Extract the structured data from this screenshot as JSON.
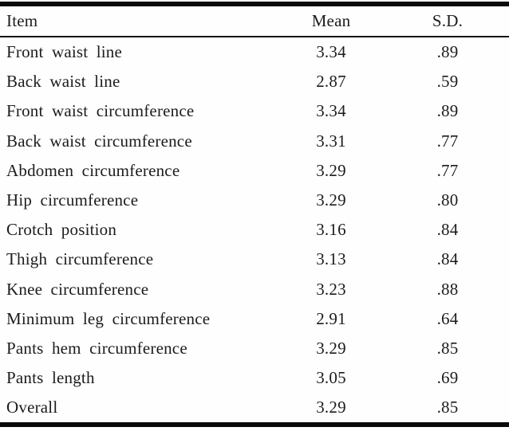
{
  "table": {
    "headers": {
      "item": "Item",
      "mean": "Mean",
      "sd": "S.D."
    },
    "rows": [
      {
        "item": "Front waist line",
        "mean": "3.34",
        "sd": ".89"
      },
      {
        "item": "Back waist line",
        "mean": "2.87",
        "sd": ".59"
      },
      {
        "item": "Front waist circumference",
        "mean": "3.34",
        "sd": ".89"
      },
      {
        "item": "Back waist circumference",
        "mean": "3.31",
        "sd": ".77"
      },
      {
        "item": "Abdomen circumference",
        "mean": "3.29",
        "sd": ".77"
      },
      {
        "item": "Hip circumference",
        "mean": "3.29",
        "sd": ".80"
      },
      {
        "item": "Crotch position",
        "mean": "3.16",
        "sd": ".84"
      },
      {
        "item": "Thigh circumference",
        "mean": "3.13",
        "sd": ".84"
      },
      {
        "item": "Knee circumference",
        "mean": "3.23",
        "sd": ".88"
      },
      {
        "item": "Minimum leg circumference",
        "mean": "2.91",
        "sd": ".64"
      },
      {
        "item": "Pants hem circumference",
        "mean": "3.29",
        "sd": ".85"
      },
      {
        "item": "Pants length",
        "mean": "3.05",
        "sd": ".69"
      },
      {
        "item": "Overall",
        "mean": "3.29",
        "sd": ".85"
      }
    ]
  },
  "colors": {
    "text": "#1c1c1c",
    "rule_heavy": "#0a0a0a",
    "rule_light": "#141414",
    "background": "#fefefe"
  },
  "chart_data": {
    "type": "table",
    "title": "",
    "columns": [
      "Item",
      "Mean",
      "S.D."
    ],
    "rows": [
      [
        "Front waist line",
        3.34,
        0.89
      ],
      [
        "Back waist line",
        2.87,
        0.59
      ],
      [
        "Front waist circumference",
        3.34,
        0.89
      ],
      [
        "Back waist circumference",
        3.31,
        0.77
      ],
      [
        "Abdomen circumference",
        3.29,
        0.77
      ],
      [
        "Hip circumference",
        3.29,
        0.8
      ],
      [
        "Crotch position",
        3.16,
        0.84
      ],
      [
        "Thigh circumference",
        3.13,
        0.84
      ],
      [
        "Knee circumference",
        3.23,
        0.88
      ],
      [
        "Minimum leg circumference",
        2.91,
        0.64
      ],
      [
        "Pants hem circumference",
        3.29,
        0.85
      ],
      [
        "Pants length",
        3.05,
        0.69
      ],
      [
        "Overall",
        3.29,
        0.85
      ]
    ]
  }
}
